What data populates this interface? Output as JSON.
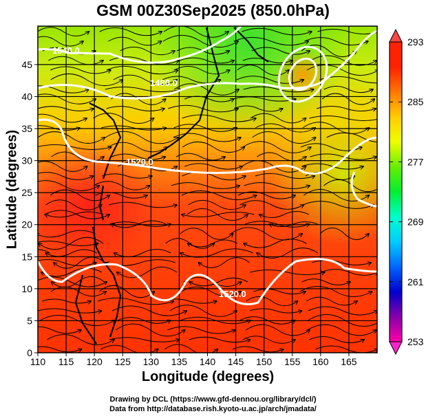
{
  "title": "GSM 00Z30Sep2025 (850.0hPa)",
  "xaxis": {
    "label": "Longitude (degrees)",
    "ticks": [
      110,
      115,
      120,
      125,
      130,
      135,
      140,
      145,
      150,
      155,
      160,
      165
    ],
    "range": [
      110,
      170
    ]
  },
  "yaxis": {
    "label": "Latitude  (degrees)",
    "ticks": [
      0,
      5,
      10,
      15,
      20,
      25,
      30,
      35,
      40,
      45
    ],
    "range": [
      0,
      51
    ]
  },
  "colorbar": {
    "ticks": [
      "293",
      "285",
      "277",
      "269",
      "261",
      "253"
    ],
    "min": 253,
    "max": 293,
    "colors": [
      "#ff00aa",
      "#8800aa",
      "#0000cc",
      "#0066ff",
      "#00ccff",
      "#00ffcc",
      "#00ee33",
      "#66ee00",
      "#eeff00",
      "#ffcc00",
      "#ff7700",
      "#ff2200"
    ]
  },
  "contours": [
    {
      "label": "1540.0"
    },
    {
      "label": "1480.0"
    },
    {
      "label": "1520.0"
    },
    {
      "label": "1520.0"
    }
  ],
  "credits": [
    "Drawing by DCL (https://www.gfd-dennou.org/library/dcl/)",
    "Data from http://database.rish.kyoto-u.ac.jp/arch/jmadata/"
  ]
}
